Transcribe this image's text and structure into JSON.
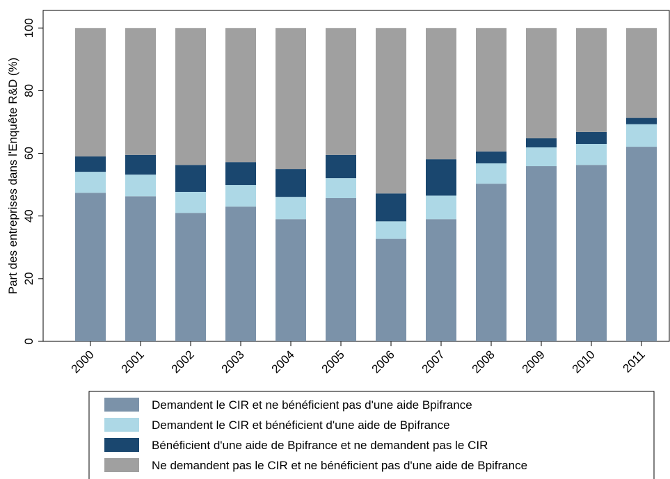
{
  "chart_data": {
    "type": "stacked_bar",
    "y_label": "Part des entreprises dans l'Enquête R&D (%)",
    "categories": [
      "2000",
      "2001",
      "2002",
      "2003",
      "2004",
      "2005",
      "2006",
      "2007",
      "2008",
      "2009",
      "2010",
      "2011"
    ],
    "series": [
      {
        "name": "Demandent le CIR et ne bénéficient pas d'une aide Bpifrance",
        "color": "#7b92a9",
        "values": [
          47.4,
          46.3,
          41.0,
          43.0,
          39.0,
          45.7,
          32.7,
          39.0,
          50.3,
          55.9,
          56.3,
          62.1
        ]
      },
      {
        "name": "Demandent le CIR et bénéficient d'une aide de Bpifrance",
        "color": "#add8e6",
        "values": [
          6.7,
          6.9,
          6.7,
          6.9,
          7.1,
          6.4,
          5.6,
          7.5,
          6.5,
          6.0,
          6.7,
          7.2
        ]
      },
      {
        "name": "Bénéficient d'une aide de Bpifrance et ne demandent pas le CIR",
        "color": "#1a476f",
        "values": [
          4.9,
          6.3,
          8.6,
          7.3,
          8.9,
          7.4,
          8.9,
          11.6,
          3.8,
          2.9,
          3.8,
          2.0
        ]
      },
      {
        "name": "Ne demandent pas le CIR et ne bénéficient pas d'une aide de Bpifrance",
        "color": "#a0a0a0",
        "values": [
          41.0,
          40.5,
          43.7,
          42.8,
          45.0,
          40.5,
          52.8,
          41.9,
          39.4,
          35.2,
          33.2,
          28.7
        ]
      }
    ],
    "ylim": [
      0,
      105.6
    ],
    "yticks": [
      0,
      20,
      40,
      60,
      80,
      100
    ]
  }
}
